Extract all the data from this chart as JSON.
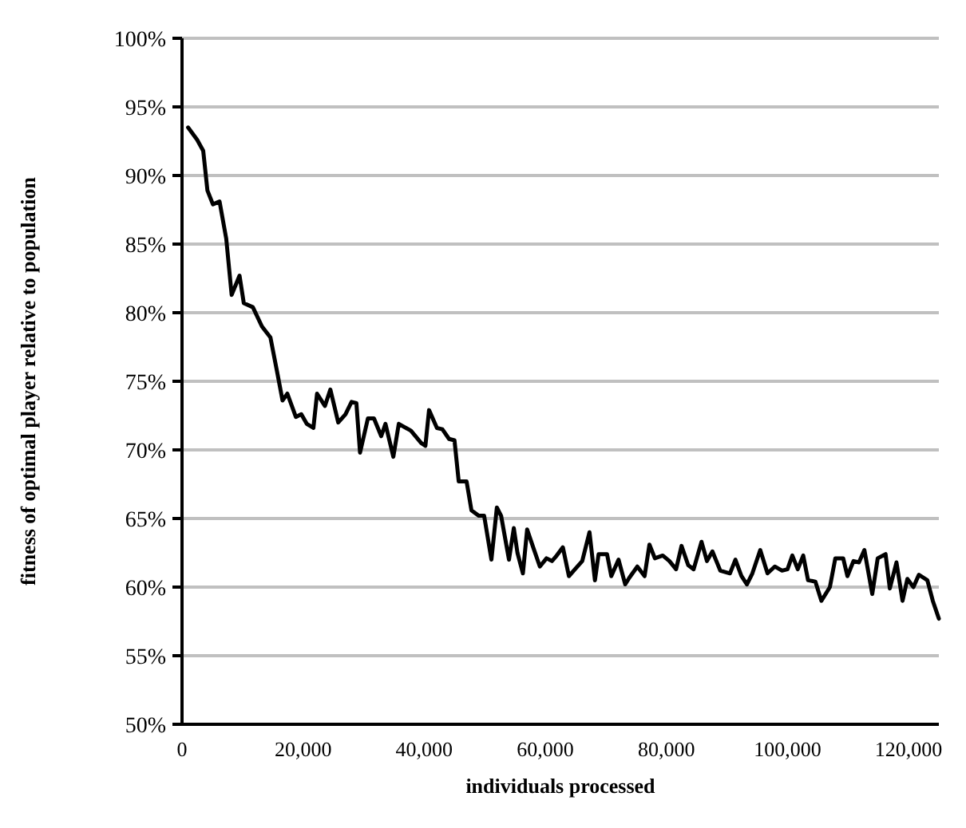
{
  "chart_data": {
    "type": "line",
    "xlabel": "individuals processed",
    "ylabel": "fitness of optimal player relative to population",
    "x": [
      1000,
      2500,
      3500,
      4200,
      5100,
      6200,
      7300,
      8200,
      9500,
      10200,
      11700,
      13200,
      14600,
      15700,
      16600,
      17400,
      18800,
      19700,
      20600,
      21700,
      22300,
      23600,
      24500,
      25800,
      27000,
      28000,
      28800,
      29400,
      30700,
      31700,
      32900,
      33600,
      34900,
      35800,
      37800,
      39500,
      40200,
      40800,
      42100,
      43000,
      44100,
      45000,
      45700,
      47000,
      47800,
      49000,
      49900,
      51100,
      52000,
      52700,
      54000,
      54800,
      55400,
      56300,
      57000,
      58000,
      59100,
      60200,
      61100,
      61700,
      62900,
      63900,
      64900,
      66100,
      67300,
      68200,
      68800,
      70200,
      70900,
      72100,
      73200,
      73900,
      75200,
      76400,
      77200,
      78100,
      79400,
      80500,
      81600,
      82500,
      83600,
      84500,
      85800,
      86700,
      87600,
      88900,
      90500,
      91400,
      92400,
      93300,
      94200,
      95500,
      96700,
      97900,
      99100,
      100000,
      100800,
      101700,
      102600,
      103400,
      104600,
      105600,
      107000,
      107900,
      109200,
      109900,
      110900,
      111800,
      112700,
      114000,
      114900,
      116200,
      116900,
      118000,
      119000,
      119800,
      120800,
      121700,
      123100,
      124000,
      125000
    ],
    "series": [
      {
        "color": "#000000",
        "values": [
          93.5,
          92.6,
          91.8,
          88.9,
          87.9,
          88.1,
          85.4,
          81.3,
          82.7,
          80.7,
          80.4,
          79.0,
          78.2,
          75.7,
          73.6,
          74.1,
          72.4,
          72.6,
          71.9,
          71.6,
          74.1,
          73.2,
          74.4,
          72.0,
          72.6,
          73.5,
          73.4,
          69.8,
          72.3,
          72.3,
          71.0,
          71.9,
          69.5,
          71.9,
          71.4,
          70.5,
          70.3,
          72.9,
          71.6,
          71.5,
          70.8,
          70.7,
          67.7,
          67.7,
          65.6,
          65.2,
          65.2,
          62.0,
          65.8,
          65.2,
          62.0,
          64.3,
          62.5,
          61.0,
          64.2,
          62.9,
          61.5,
          62.1,
          61.9,
          62.2,
          62.9,
          60.8,
          61.3,
          61.9,
          64.0,
          60.5,
          62.4,
          62.4,
          60.8,
          62.0,
          60.2,
          60.7,
          61.5,
          60.8,
          63.1,
          62.1,
          62.3,
          61.9,
          61.3,
          63.0,
          61.6,
          61.3,
          63.3,
          61.9,
          62.6,
          61.2,
          61.0,
          62.0,
          60.8,
          60.2,
          61.0,
          62.7,
          61.0,
          61.5,
          61.2,
          61.3,
          62.3,
          61.3,
          62.3,
          60.5,
          60.4,
          59.0,
          60.0,
          62.1,
          62.1,
          60.8,
          61.9,
          61.8,
          62.7,
          59.5,
          62.1,
          62.4,
          59.9,
          61.8,
          59.0,
          60.6,
          60.0,
          60.9,
          60.5,
          59.0,
          57.7
        ]
      }
    ],
    "xlim": [
      0,
      125000
    ],
    "xticks": [
      0,
      {
        "value": 20000,
        "label": "20,000"
      },
      {
        "value": 40000,
        "label": "40,000"
      },
      {
        "value": 60000,
        "label": "60,000"
      },
      {
        "value": 80000,
        "label": "80,000"
      },
      {
        "value": 100000,
        "label": "100,000"
      },
      {
        "value": 120000,
        "label": "120,000"
      }
    ],
    "ylim": [
      50,
      100
    ],
    "yticks": [
      {
        "value": 50,
        "label": "50%"
      },
      {
        "value": 55,
        "label": "55%"
      },
      {
        "value": 60,
        "label": "60%"
      },
      {
        "value": 65,
        "label": "65%"
      },
      {
        "value": 70,
        "label": "70%"
      },
      {
        "value": 75,
        "label": "75%"
      },
      {
        "value": 80,
        "label": "80%"
      },
      {
        "value": 85,
        "label": "85%"
      },
      {
        "value": 90,
        "label": "90%"
      },
      {
        "value": 95,
        "label": "95%"
      },
      {
        "value": 100,
        "label": "100%"
      }
    ],
    "grid": "y",
    "marker": "none",
    "line_style": "solid"
  }
}
